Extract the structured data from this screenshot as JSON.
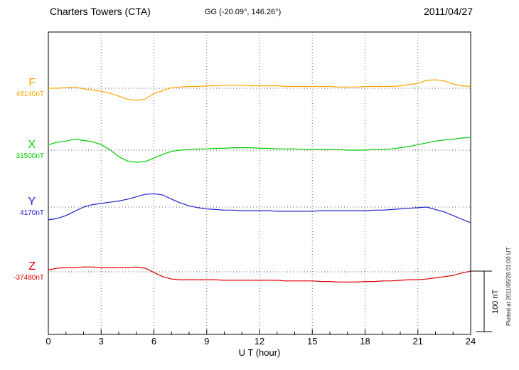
{
  "header": {
    "station": "Charters Towers (CTA)",
    "coords": "GG (-20.09°, 146.26°)",
    "date": "2011/04/27"
  },
  "xaxis": {
    "label": "U T (hour)",
    "ticks": [
      0,
      3,
      6,
      9,
      12,
      15,
      18,
      21,
      24
    ],
    "range": [
      0,
      24
    ]
  },
  "scalebar": {
    "label": "100 nT",
    "nT": 100
  },
  "watermark": "Plotted at 2011/05/28 01:00 UT",
  "chart_data": {
    "type": "line",
    "title": "Charters Towers (CTA) magnetogram 2011/04/27",
    "xlabel": "U T (hour)",
    "x_range_hours": [
      0,
      24
    ],
    "grid": "dotted vertical lines every 3 hours, dotted horizontal baseline per component",
    "x": [
      0,
      0.5,
      1,
      1.5,
      2,
      2.5,
      3,
      3.5,
      4,
      4.5,
      5,
      5.5,
      6,
      6.5,
      7,
      7.5,
      8,
      8.5,
      9,
      9.5,
      10,
      10.5,
      11,
      11.5,
      12,
      12.5,
      13,
      13.5,
      14,
      14.5,
      15,
      15.5,
      16,
      16.5,
      17,
      17.5,
      18,
      18.5,
      19,
      19.5,
      20,
      20.5,
      21,
      21.5,
      22,
      22.5,
      23,
      23.5,
      24
    ],
    "offsets_unit": "nT relative to component baseline",
    "series": [
      {
        "name": "F",
        "baseline_label": "49140nT",
        "color": "#FFA500",
        "offsets_nT": [
          0,
          0,
          1,
          2,
          -1,
          -3,
          -5,
          -8,
          -13,
          -18,
          -20,
          -18,
          -9,
          -4,
          1,
          2,
          3,
          3,
          4,
          4,
          5,
          5,
          5,
          4,
          4,
          4,
          4,
          3,
          3,
          3,
          3,
          3,
          3,
          2,
          2,
          2,
          3,
          3,
          3,
          3,
          4,
          6,
          8,
          13,
          14,
          12,
          7,
          4,
          3
        ]
      },
      {
        "name": "X",
        "baseline_label": "31500nT",
        "color": "#00CC00",
        "offsets_nT": [
          9,
          13,
          15,
          18,
          16,
          14,
          9,
          1,
          -11,
          -18,
          -20,
          -19,
          -13,
          -7,
          -2,
          0,
          1,
          2,
          2,
          3,
          3,
          4,
          4,
          4,
          3,
          3,
          2,
          2,
          2,
          1,
          1,
          1,
          1,
          1,
          0,
          0,
          0,
          1,
          1,
          2,
          4,
          6,
          9,
          12,
          15,
          17,
          18,
          20,
          21
        ]
      },
      {
        "name": "Y",
        "baseline_label": "4170nT",
        "color": "#2222CC",
        "offsets_nT": [
          -21,
          -19,
          -14,
          -7,
          0,
          4,
          6,
          8,
          10,
          13,
          17,
          21,
          22,
          20,
          13,
          7,
          2,
          -1,
          -3,
          -4,
          -5,
          -5,
          -6,
          -6,
          -6,
          -6,
          -7,
          -7,
          -7,
          -7,
          -7,
          -6,
          -6,
          -6,
          -6,
          -6,
          -6,
          -5,
          -5,
          -4,
          -3,
          -2,
          -1,
          0,
          -4,
          -8,
          -14,
          -20,
          -26
        ]
      },
      {
        "name": "Z",
        "baseline_label": "-37480nT",
        "color": "#DD0000",
        "offsets_nT": [
          3,
          6,
          7,
          7,
          8,
          8,
          7,
          7,
          7,
          7,
          8,
          6,
          -1,
          -8,
          -12,
          -13,
          -13,
          -13,
          -13,
          -13,
          -14,
          -14,
          -14,
          -14,
          -14,
          -14,
          -14,
          -15,
          -15,
          -15,
          -15,
          -16,
          -16,
          -17,
          -17,
          -17,
          -16,
          -16,
          -15,
          -15,
          -14,
          -13,
          -13,
          -12,
          -10,
          -8,
          -6,
          -2,
          1
        ]
      }
    ]
  }
}
